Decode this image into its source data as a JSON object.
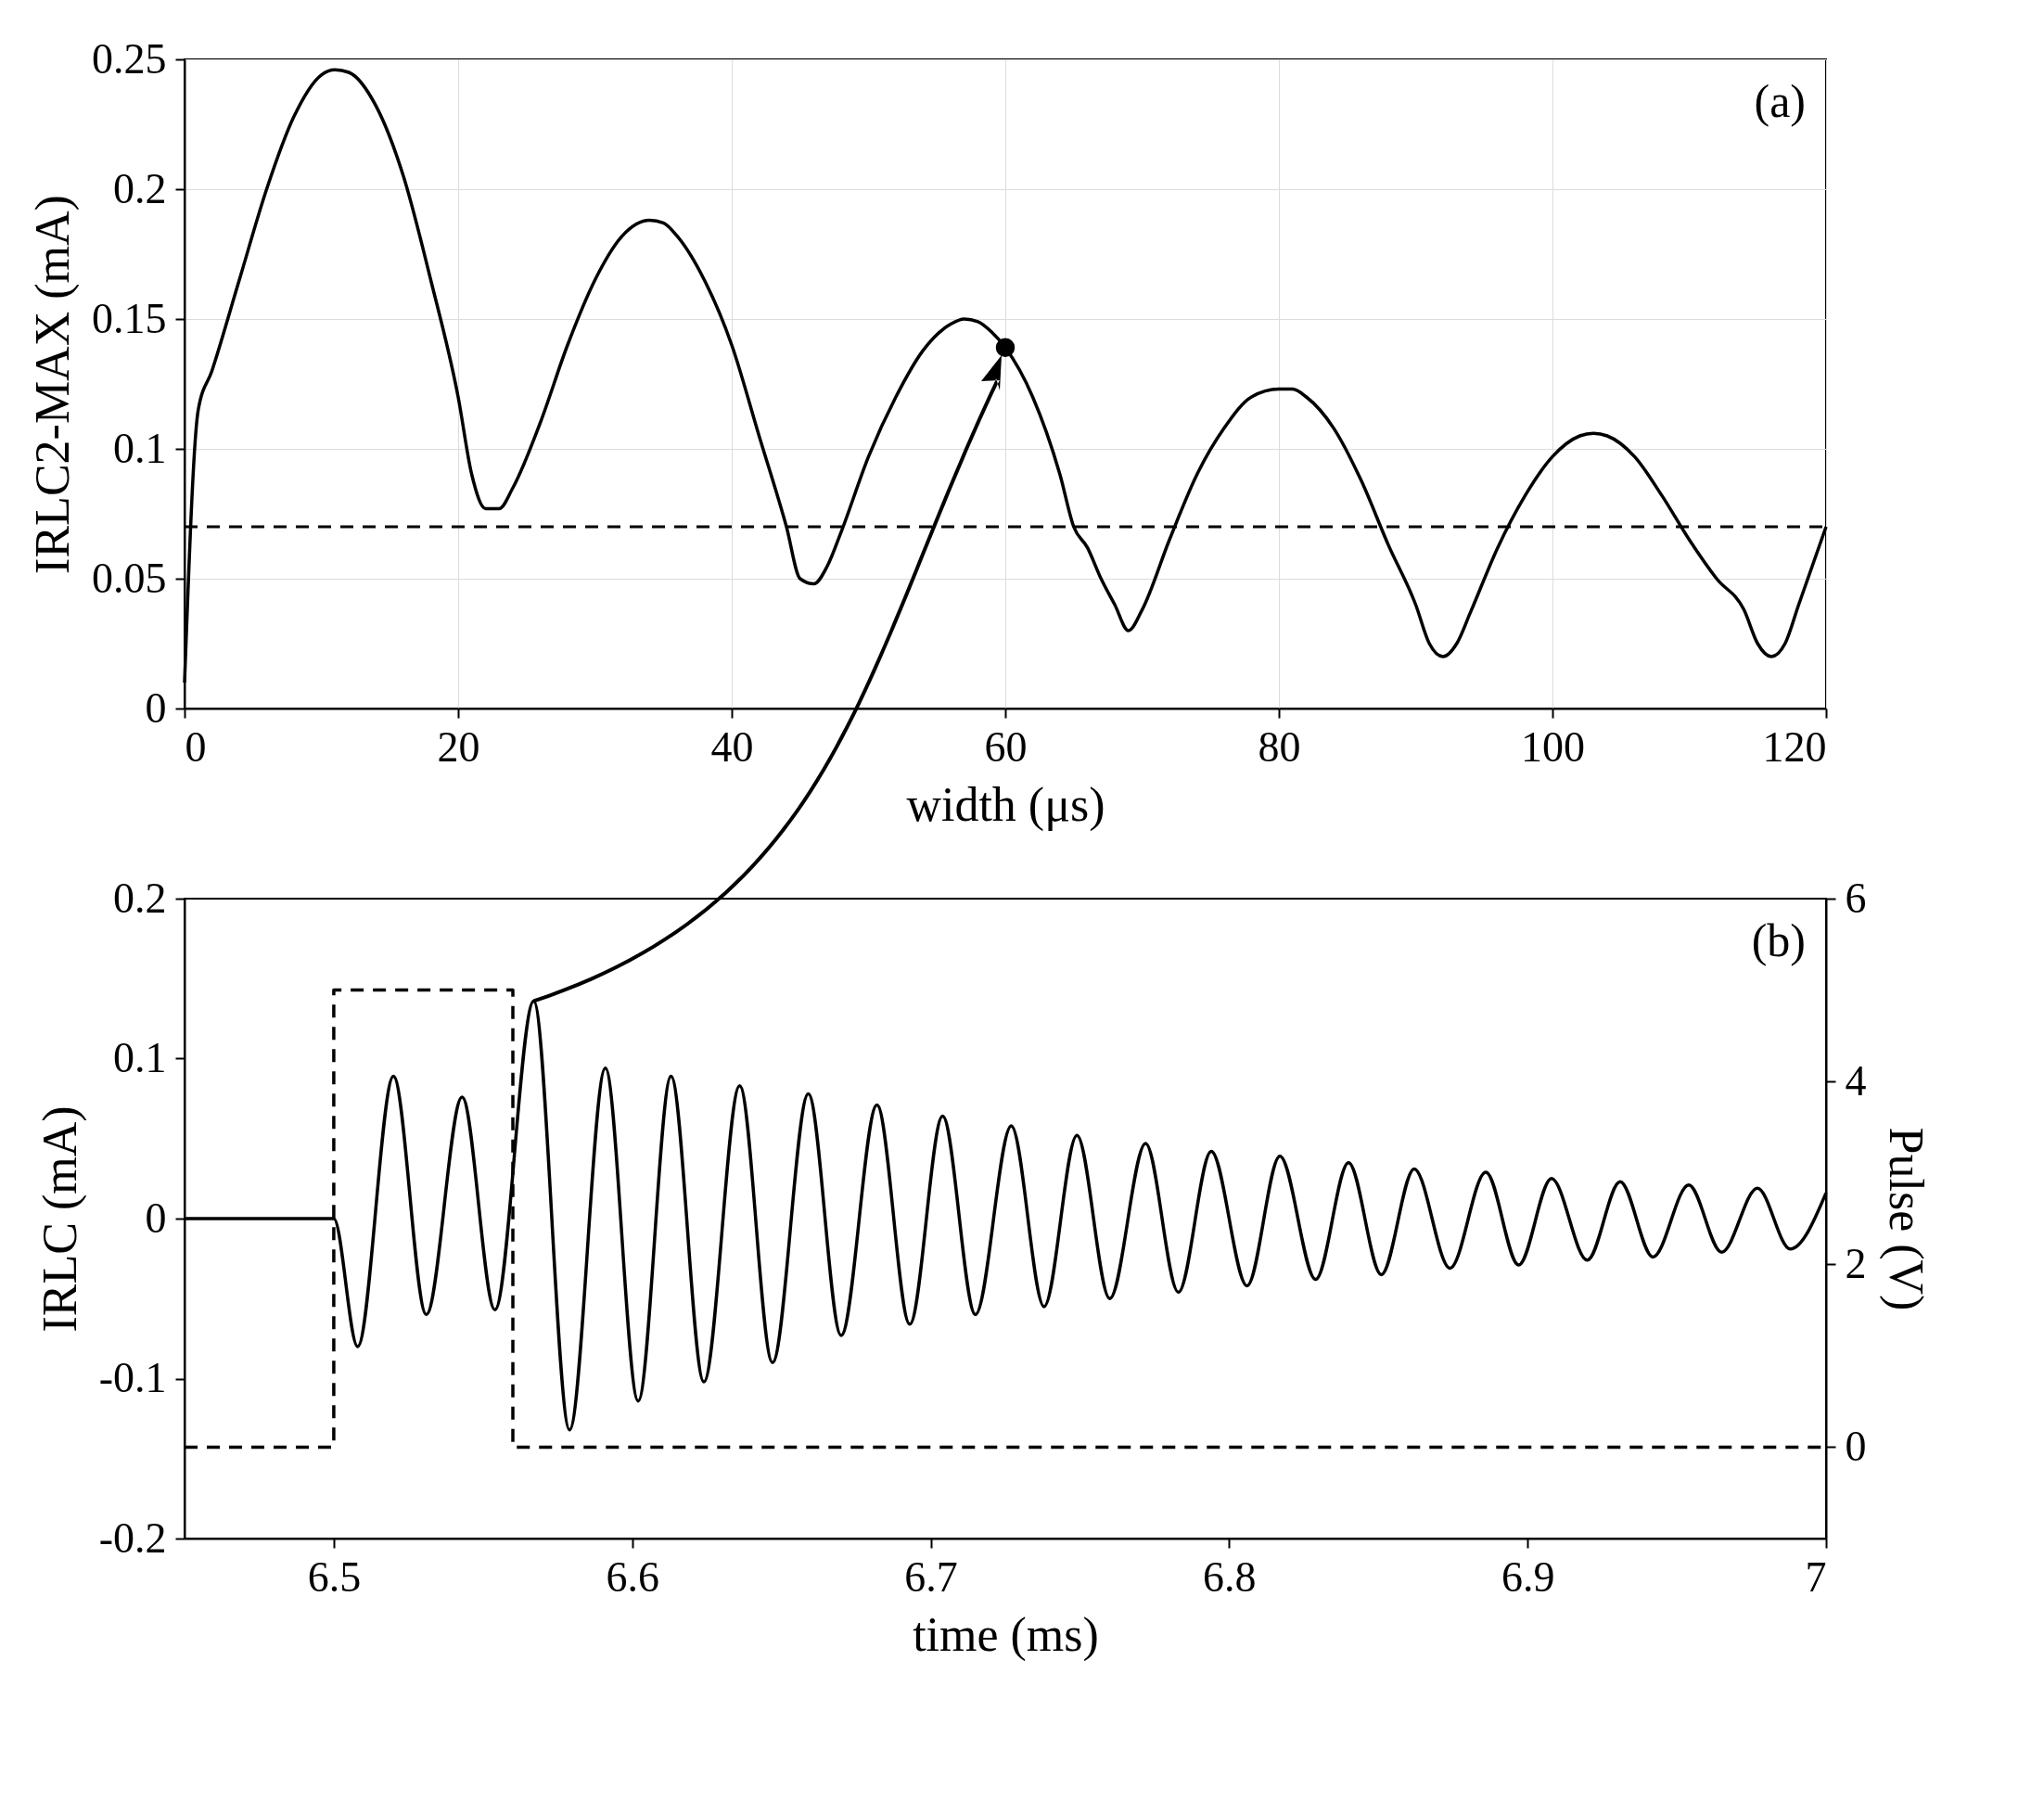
{
  "chart_data": [
    {
      "type": "line",
      "xlabel": "width (μs)",
      "ylabel": "IRLC2-MAX (mA)",
      "annotations": [
        "(a)"
      ],
      "xlim": [
        0,
        120
      ],
      "xticks": [
        0,
        20,
        40,
        60,
        80,
        100,
        120
      ],
      "ylim": [
        0,
        0.25
      ],
      "yticks": [
        0,
        0.05,
        0.1,
        0.15,
        0.2,
        0.25
      ],
      "grid": true,
      "ref_lines": [
        {
          "axis": "y",
          "value": 0.07,
          "color": "#000000",
          "line_style": "dashed"
        }
      ],
      "series": [
        {
          "color": "#000000",
          "line_style": "solid",
          "x": [
            0,
            1,
            2,
            4,
            6,
            8,
            10,
            11,
            12,
            14,
            16,
            18,
            20,
            21,
            22,
            23,
            24,
            26,
            28,
            30,
            32,
            34,
            35,
            36,
            38,
            40,
            42,
            44,
            45,
            46,
            47,
            48,
            50,
            52,
            54,
            56,
            57,
            58,
            59,
            60,
            62,
            64,
            65,
            66,
            67,
            68,
            69,
            70,
            72,
            74,
            76,
            78,
            80,
            81,
            82,
            84,
            86,
            88,
            90,
            91,
            92,
            93,
            94,
            96,
            98,
            100,
            102,
            103,
            104,
            106,
            108,
            110,
            112,
            114,
            115,
            116,
            117,
            118,
            120
          ],
          "values": [
            0.01,
            0.115,
            0.13,
            0.165,
            0.2,
            0.228,
            0.244,
            0.246,
            0.245,
            0.232,
            0.205,
            0.165,
            0.12,
            0.09,
            0.077,
            0.077,
            0.085,
            0.11,
            0.14,
            0.165,
            0.182,
            0.188,
            0.187,
            0.182,
            0.165,
            0.14,
            0.105,
            0.07,
            0.05,
            0.048,
            0.055,
            0.068,
            0.097,
            0.12,
            0.138,
            0.148,
            0.15,
            0.149,
            0.145,
            0.139,
            0.12,
            0.09,
            0.07,
            0.062,
            0.05,
            0.04,
            0.03,
            0.038,
            0.065,
            0.09,
            0.108,
            0.12,
            0.123,
            0.123,
            0.12,
            0.108,
            0.088,
            0.063,
            0.04,
            0.025,
            0.02,
            0.025,
            0.037,
            0.062,
            0.082,
            0.097,
            0.105,
            0.106,
            0.105,
            0.097,
            0.082,
            0.065,
            0.05,
            0.038,
            0.025,
            0.02,
            0.025,
            0.04,
            0.07
          ]
        },
        {
          "type": "scatter",
          "color": "#000000",
          "marker": "circle",
          "x": [
            60
          ],
          "values": [
            0.139
          ]
        }
      ]
    },
    {
      "type": "line",
      "xlabel": "time (ms)",
      "ylabel": "IRLC (mA)",
      "y2label": "Pulse (V)",
      "annotations": [
        "(b)"
      ],
      "xlim": [
        6.45,
        7
      ],
      "xticks": [
        6.5,
        6.6,
        6.7,
        6.8,
        6.9,
        7
      ],
      "ylim": [
        -0.2,
        0.2
      ],
      "yticks": [
        -0.2,
        -0.1,
        0,
        0.1,
        0.2
      ],
      "y2lim": [
        -1,
        6
      ],
      "y2ticks": [
        0,
        2,
        4,
        6
      ],
      "series": [
        {
          "color": "#000000",
          "line_style": "solid",
          "x": [
            6.45,
            6.5,
            6.508,
            6.52,
            6.531,
            6.543,
            6.554,
            6.567,
            6.579,
            6.591,
            6.602,
            6.613,
            6.624,
            6.636,
            6.647,
            6.659,
            6.67,
            6.682,
            6.693,
            6.704,
            6.715,
            6.727,
            6.738,
            6.749,
            6.76,
            6.772,
            6.783,
            6.794,
            6.806,
            6.817,
            6.829,
            6.84,
            6.851,
            6.862,
            6.874,
            6.886,
            6.897,
            6.908,
            6.92,
            6.931,
            6.942,
            6.954,
            6.965,
            6.977,
            6.988,
            7
          ],
          "values": [
            0,
            0,
            -0.08,
            0.089,
            -0.06,
            0.076,
            -0.057,
            0.136,
            -0.132,
            0.094,
            -0.114,
            0.089,
            -0.102,
            0.083,
            -0.09,
            0.078,
            -0.073,
            0.071,
            -0.066,
            0.064,
            -0.06,
            0.058,
            -0.055,
            0.052,
            -0.05,
            0.047,
            -0.046,
            0.042,
            -0.042,
            0.039,
            -0.038,
            0.035,
            -0.035,
            0.031,
            -0.031,
            0.029,
            -0.029,
            0.025,
            -0.026,
            0.023,
            -0.024,
            0.021,
            -0.021,
            0.019,
            -0.019,
            0.016
          ]
        },
        {
          "type": "step",
          "axis": "y2",
          "color": "#000000",
          "line_style": "dashed",
          "x": [
            6.45,
            6.5,
            6.56,
            7
          ],
          "values": [
            0,
            5,
            0,
            0
          ]
        }
      ]
    }
  ]
}
